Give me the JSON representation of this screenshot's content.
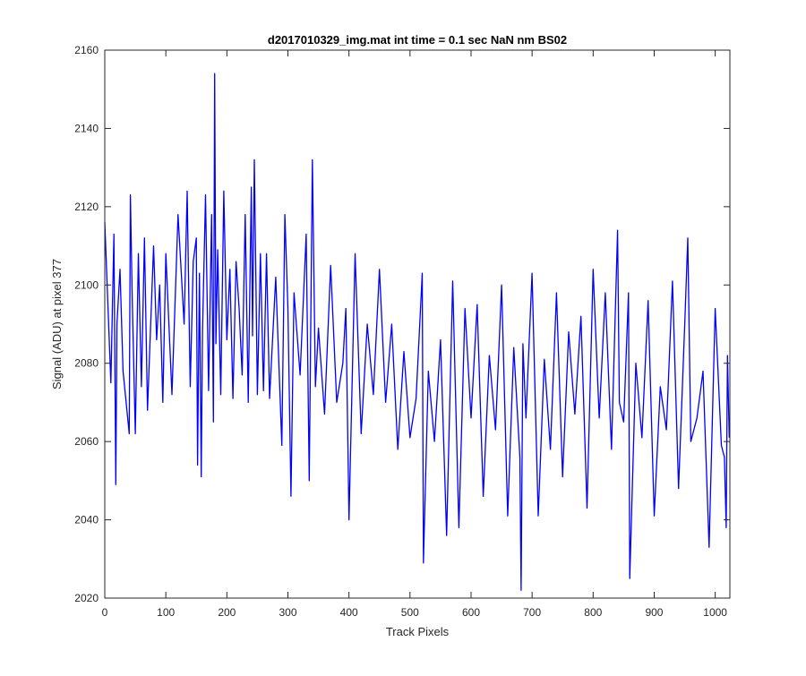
{
  "chart_data": {
    "type": "line",
    "title": "d2017010329_img.mat int time = 0.1 sec  NaN nm BS02",
    "xlabel": "Track Pixels",
    "ylabel": "Signal (ADU) at pixel 377",
    "xlim": [
      0,
      1024
    ],
    "ylim": [
      2020,
      2160
    ],
    "xticks": [
      0,
      100,
      200,
      300,
      400,
      500,
      600,
      700,
      800,
      900,
      1000
    ],
    "yticks": [
      2020,
      2040,
      2060,
      2080,
      2100,
      2120,
      2140,
      2160
    ],
    "grid": false,
    "legend": "none",
    "series": [
      {
        "color": "#0000ff",
        "x": [
          0,
          10,
          15,
          18,
          20,
          25,
          30,
          40,
          42,
          45,
          50,
          55,
          60,
          65,
          70,
          80,
          85,
          90,
          95,
          100,
          110,
          120,
          130,
          135,
          140,
          145,
          150,
          152,
          155,
          158,
          160,
          165,
          170,
          175,
          178,
          180,
          182,
          185,
          190,
          195,
          200,
          205,
          210,
          215,
          220,
          225,
          230,
          235,
          240,
          242,
          245,
          250,
          255,
          260,
          265,
          270,
          280,
          290,
          295,
          300,
          305,
          310,
          320,
          330,
          335,
          340,
          345,
          350,
          360,
          370,
          380,
          390,
          395,
          400,
          410,
          420,
          430,
          440,
          450,
          460,
          470,
          480,
          490,
          500,
          510,
          520,
          522,
          530,
          540,
          550,
          560,
          570,
          580,
          590,
          600,
          610,
          620,
          630,
          640,
          650,
          660,
          670,
          680,
          682,
          685,
          690,
          700,
          710,
          720,
          730,
          740,
          750,
          760,
          770,
          780,
          790,
          800,
          810,
          820,
          830,
          840,
          843,
          850,
          858,
          860,
          870,
          880,
          890,
          900,
          910,
          920,
          930,
          940,
          950,
          955,
          960,
          970,
          980,
          990,
          1000,
          1010,
          1015,
          1018,
          1020,
          1023
        ],
        "y": [
          2116,
          2075,
          2113,
          2049,
          2090,
          2104,
          2078,
          2062,
          2123,
          2096,
          2062,
          2108,
          2074,
          2112,
          2068,
          2110,
          2086,
          2100,
          2070,
          2108,
          2072,
          2118,
          2090,
          2124,
          2074,
          2106,
          2112,
          2054,
          2103,
          2051,
          2088,
          2123,
          2073,
          2118,
          2065,
          2154,
          2085,
          2109,
          2072,
          2124,
          2086,
          2104,
          2071,
          2106,
          2094,
          2077,
          2118,
          2070,
          2125,
          2087,
          2132,
          2072,
          2108,
          2073,
          2108,
          2071,
          2102,
          2059,
          2118,
          2094,
          2046,
          2098,
          2077,
          2113,
          2050,
          2132,
          2074,
          2089,
          2067,
          2105,
          2070,
          2080,
          2094,
          2040,
          2108,
          2062,
          2090,
          2072,
          2104,
          2070,
          2090,
          2058,
          2083,
          2061,
          2071,
          2103,
          2029,
          2078,
          2060,
          2086,
          2036,
          2101,
          2038,
          2094,
          2066,
          2095,
          2046,
          2082,
          2063,
          2100,
          2041,
          2084,
          2056,
          2022,
          2085,
          2066,
          2103,
          2041,
          2081,
          2058,
          2098,
          2051,
          2088,
          2067,
          2092,
          2043,
          2104,
          2066,
          2098,
          2058,
          2114,
          2070,
          2065,
          2098,
          2025,
          2080,
          2061,
          2096,
          2041,
          2074,
          2063,
          2101,
          2048,
          2090,
          2112,
          2060,
          2066,
          2078,
          2033,
          2094,
          2059,
          2056,
          2038,
          2082,
          2061
        ]
      }
    ]
  }
}
